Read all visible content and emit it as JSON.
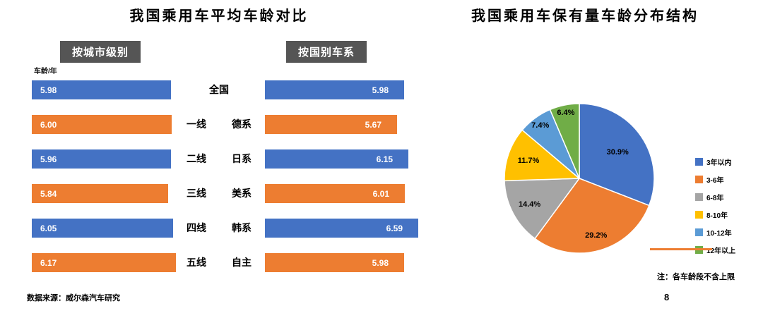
{
  "page": {
    "source_note": "数据来源：威尔森汽车研究",
    "page_number": "8"
  },
  "chart_data": [
    {
      "type": "bar",
      "orientation": "horizontal",
      "title": "我国乘用车平均车龄对比",
      "unit_label": "车龄/年",
      "bar_colors_alternating": [
        "#4472C4",
        "#ED7D31"
      ],
      "value_label_color": "#FFFFFF",
      "groups": [
        {
          "header": "按城市级别",
          "categories": [
            "全国",
            "一线",
            "二线",
            "三线",
            "四线",
            "五线"
          ],
          "values": [
            5.98,
            6.0,
            5.96,
            5.84,
            6.05,
            6.17
          ]
        },
        {
          "header": "按国别车系",
          "categories": [
            "全国",
            "德系",
            "日系",
            "美系",
            "韩系",
            "自主"
          ],
          "values": [
            5.98,
            5.67,
            6.15,
            6.01,
            6.59,
            5.98
          ]
        }
      ]
    },
    {
      "type": "pie",
      "title": "我国乘用车保有量车龄分布结构",
      "labels": [
        "3年以内",
        "3-6年",
        "6-8年",
        "8-10年",
        "10-12年",
        "12年以上"
      ],
      "values": [
        30.9,
        29.2,
        14.4,
        11.7,
        7.4,
        6.4
      ],
      "value_labels": [
        "30.9%",
        "29.2%",
        "14.4%",
        "11.7%",
        "7.4%",
        "6.4%"
      ],
      "colors": [
        "#4472C4",
        "#ED7D31",
        "#A5A5A5",
        "#FFC000",
        "#5B9BD5",
        "#70AD47"
      ],
      "legend_position": "right",
      "note": "注：各车龄段不含上限"
    }
  ]
}
